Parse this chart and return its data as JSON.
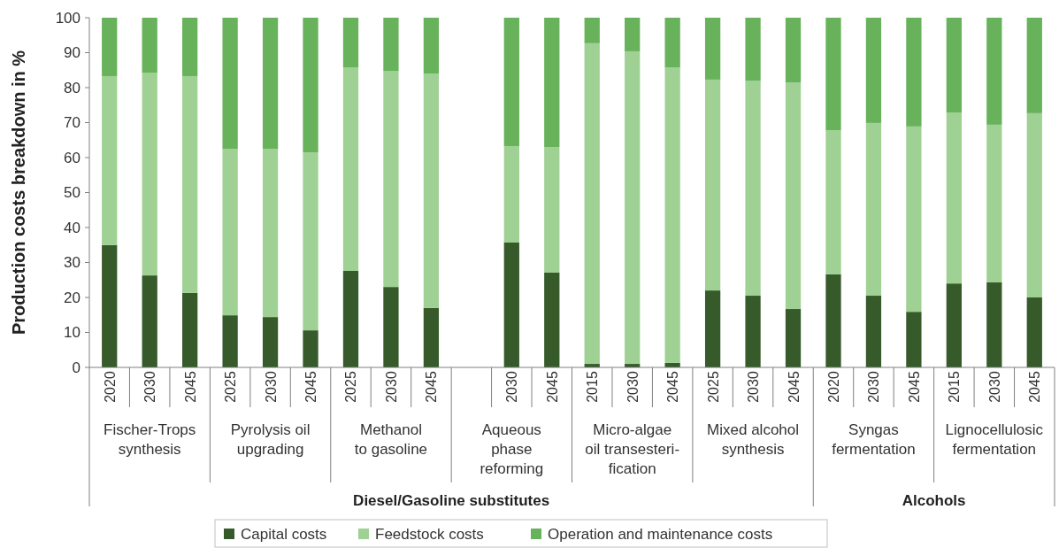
{
  "chart_data": {
    "type": "bar",
    "stacked": true,
    "ylabel": "Production costs breakdown in %",
    "ylim": [
      0,
      100
    ],
    "yticks": [
      0,
      10,
      20,
      30,
      40,
      50,
      60,
      70,
      80,
      90,
      100
    ],
    "legend": "bottom",
    "grid": false,
    "categories": [
      "2020",
      "2030",
      "2045",
      "2025",
      "2030",
      "2045",
      "2025",
      "2030",
      "2045",
      null,
      "2030",
      "2045",
      "2015",
      "2030",
      "2045",
      "2025",
      "2030",
      "2045",
      "2020",
      "2030",
      "2045",
      "2015",
      "2030",
      "2045"
    ],
    "series": [
      {
        "name": "Capital costs",
        "color": "#375a2a",
        "values": [
          35,
          26.3,
          21.3,
          14.9,
          14.4,
          10.6,
          27.6,
          23,
          17,
          null,
          35.7,
          27.1,
          1,
          1,
          1.3,
          22,
          20.5,
          16.7,
          26.6,
          20.5,
          15.9,
          24,
          24.3,
          20
        ]
      },
      {
        "name": "Feedstock costs",
        "color": "#9fd194",
        "values": [
          48.3,
          58,
          62,
          47.6,
          48.1,
          50.9,
          58.2,
          61.8,
          67,
          null,
          27.6,
          35.9,
          91.7,
          89.4,
          84.5,
          60.3,
          61.5,
          64.8,
          41.2,
          49.4,
          53,
          48.9,
          45.1,
          52.7
        ]
      },
      {
        "name": "Operation and maintenance costs",
        "color": "#67b25a",
        "values": [
          16.7,
          15.7,
          16.7,
          37.5,
          37.5,
          38.5,
          14.2,
          15.2,
          16,
          null,
          36.7,
          37,
          7.3,
          9.6,
          14.2,
          17.7,
          18,
          18.5,
          32.2,
          30.1,
          31.1,
          27.1,
          30.6,
          27.3
        ]
      }
    ],
    "annotations": [
      "Fischer-Trops\nsynthesis",
      "Pyrolysis oil\nupgrading",
      "Methanol\nto gasoline",
      "Aqueous\nphase\nreforming",
      "Micro-algae\noil transesteri-\nfication",
      "Mixed alcohol\nsynthesis",
      "Syngas\nfermentation",
      "Lignocellulosic\nfermentation",
      "Diesel/Gasoline substitutes",
      "Alcohols"
    ]
  }
}
